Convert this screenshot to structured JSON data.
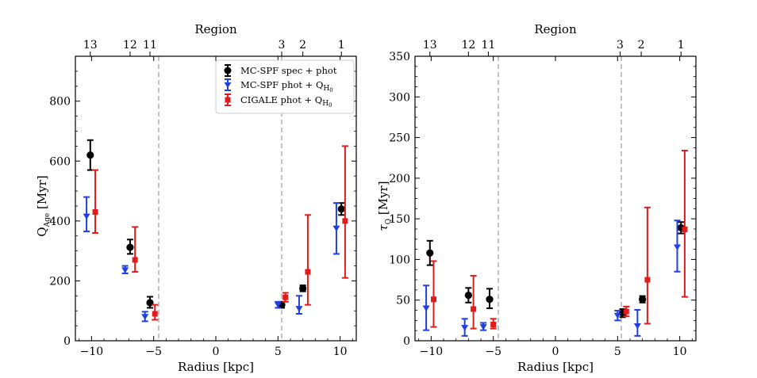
{
  "colors": {
    "black": "#000000",
    "blue": "#1f3fe0",
    "red": "#e31a1c",
    "dashed": "#aaaaaa"
  },
  "legend": {
    "spec": "MC-SPF spec + phot",
    "mcspf_phot": "MC-SPF phot + Q",
    "cigale_phot": "CIGALE phot + Q",
    "h_sub": "H",
    "zero_sub": "0"
  },
  "chart_data": [
    {
      "type": "scatter",
      "panel": "left",
      "top_title": "Region",
      "xlabel": "Radius [kpc]",
      "ylabel_main": "Q",
      "ylabel_sub": "Age",
      "ylabel_unit": " [Myr]",
      "xlim": [
        -11.3,
        11.3
      ],
      "ylim": [
        0,
        950
      ],
      "xticks": [
        -10,
        -5,
        0,
        5,
        10
      ],
      "xtick_labels": [
        "−10",
        "−5",
        "0",
        "5",
        "10"
      ],
      "yticks": [
        0,
        200,
        400,
        600,
        800
      ],
      "ytick_labels": [
        "0",
        "200",
        "400",
        "600",
        "800"
      ],
      "region_ticks": [
        {
          "x": -10.1,
          "label": "13"
        },
        {
          "x": -6.9,
          "label": "12"
        },
        {
          "x": -5.3,
          "label": "11"
        },
        {
          "x": 5.3,
          "label": "3"
        },
        {
          "x": 7.0,
          "label": "2"
        },
        {
          "x": 10.1,
          "label": "1"
        }
      ],
      "vlines": [
        -4.6,
        5.3
      ],
      "series": [
        {
          "name": "MC-SPF spec + phot",
          "marker": "circle",
          "color": "#000000",
          "points": [
            {
              "x": -10.1,
              "y": 620,
              "lo": 570,
              "hi": 670
            },
            {
              "x": -6.9,
              "y": 312,
              "lo": 290,
              "hi": 338
            },
            {
              "x": -5.3,
              "y": 127,
              "lo": 110,
              "hi": 147
            },
            {
              "x": 5.3,
              "y": 120,
              "lo": 110,
              "hi": 130
            },
            {
              "x": 7.0,
              "y": 175,
              "lo": 165,
              "hi": 185
            },
            {
              "x": 10.1,
              "y": 440,
              "lo": 420,
              "hi": 460
            }
          ]
        },
        {
          "name": "MC-SPF phot + QH0",
          "marker": "triangle-down",
          "color": "#1f3fe0",
          "points": [
            {
              "x": -10.4,
              "y": 415,
              "lo": 365,
              "hi": 480
            },
            {
              "x": -7.3,
              "y": 236,
              "lo": 225,
              "hi": 250
            },
            {
              "x": -5.7,
              "y": 80,
              "lo": 65,
              "hi": 97
            },
            {
              "x": 5.0,
              "y": 120,
              "lo": 110,
              "hi": 130
            },
            {
              "x": 6.7,
              "y": 107,
              "lo": 90,
              "hi": 150
            },
            {
              "x": 9.7,
              "y": 375,
              "lo": 290,
              "hi": 460
            }
          ]
        },
        {
          "name": "CIGALE phot + QH0",
          "marker": "square",
          "color": "#e31a1c",
          "points": [
            {
              "x": -9.7,
              "y": 430,
              "lo": 360,
              "hi": 570
            },
            {
              "x": -6.5,
              "y": 270,
              "lo": 230,
              "hi": 380
            },
            {
              "x": -4.9,
              "y": 90,
              "lo": 70,
              "hi": 120
            },
            {
              "x": 5.6,
              "y": 145,
              "lo": 130,
              "hi": 160
            },
            {
              "x": 7.4,
              "y": 230,
              "lo": 120,
              "hi": 420
            },
            {
              "x": 10.4,
              "y": 400,
              "lo": 210,
              "hi": 650
            }
          ]
        }
      ]
    },
    {
      "type": "scatter",
      "panel": "right",
      "top_title": "Region",
      "xlabel": "Radius [kpc]",
      "ylabel_main": "τ",
      "ylabel_sub": "Q",
      "ylabel_unit": " [Myr]",
      "xlim": [
        -11.3,
        11.3
      ],
      "ylim": [
        0,
        350
      ],
      "xticks": [
        -10,
        -5,
        0,
        5,
        10
      ],
      "xtick_labels": [
        "−10",
        "−5",
        "0",
        "5",
        "10"
      ],
      "yticks": [
        0,
        50,
        100,
        150,
        200,
        250,
        300,
        350
      ],
      "ytick_labels": [
        "0",
        "50",
        "100",
        "150",
        "200",
        "250",
        "300",
        "350"
      ],
      "region_ticks": [
        {
          "x": -10.1,
          "label": "13"
        },
        {
          "x": -7.0,
          "label": "12"
        },
        {
          "x": -5.4,
          "label": "11"
        },
        {
          "x": 5.2,
          "label": "3"
        },
        {
          "x": 6.9,
          "label": "2"
        },
        {
          "x": 10.1,
          "label": "1"
        }
      ],
      "vlines": [
        -4.6,
        5.3
      ],
      "series": [
        {
          "name": "MC-SPF spec + phot",
          "marker": "circle",
          "color": "#000000",
          "points": [
            {
              "x": -10.1,
              "y": 108,
              "lo": 93,
              "hi": 123
            },
            {
              "x": -7.0,
              "y": 56,
              "lo": 47,
              "hi": 65
            },
            {
              "x": -5.3,
              "y": 51,
              "lo": 40,
              "hi": 64
            },
            {
              "x": 5.4,
              "y": 34,
              "lo": 29,
              "hi": 39
            },
            {
              "x": 7.0,
              "y": 51,
              "lo": 47,
              "hi": 55
            },
            {
              "x": 10.1,
              "y": 139,
              "lo": 132,
              "hi": 146
            }
          ]
        },
        {
          "name": "MC-SPF phot + QH0",
          "marker": "triangle-down",
          "color": "#1f3fe0",
          "points": [
            {
              "x": -10.4,
              "y": 40,
              "lo": 13,
              "hi": 68
            },
            {
              "x": -7.3,
              "y": 16,
              "lo": 6,
              "hi": 27
            },
            {
              "x": -5.8,
              "y": 17,
              "lo": 13,
              "hi": 22
            },
            {
              "x": 5.0,
              "y": 31,
              "lo": 25,
              "hi": 37
            },
            {
              "x": 6.6,
              "y": 18,
              "lo": 6,
              "hi": 38
            },
            {
              "x": 9.8,
              "y": 115,
              "lo": 85,
              "hi": 148
            }
          ]
        },
        {
          "name": "CIGALE phot + QH0",
          "marker": "square",
          "color": "#e31a1c",
          "points": [
            {
              "x": -9.8,
              "y": 51,
              "lo": 17,
              "hi": 98
            },
            {
              "x": -6.6,
              "y": 39,
              "lo": 15,
              "hi": 80
            },
            {
              "x": -5.0,
              "y": 20,
              "lo": 15,
              "hi": 27
            },
            {
              "x": 5.7,
              "y": 36,
              "lo": 30,
              "hi": 42
            },
            {
              "x": 7.4,
              "y": 75,
              "lo": 21,
              "hi": 164
            },
            {
              "x": 10.4,
              "y": 137,
              "lo": 54,
              "hi": 234
            }
          ]
        }
      ]
    }
  ]
}
